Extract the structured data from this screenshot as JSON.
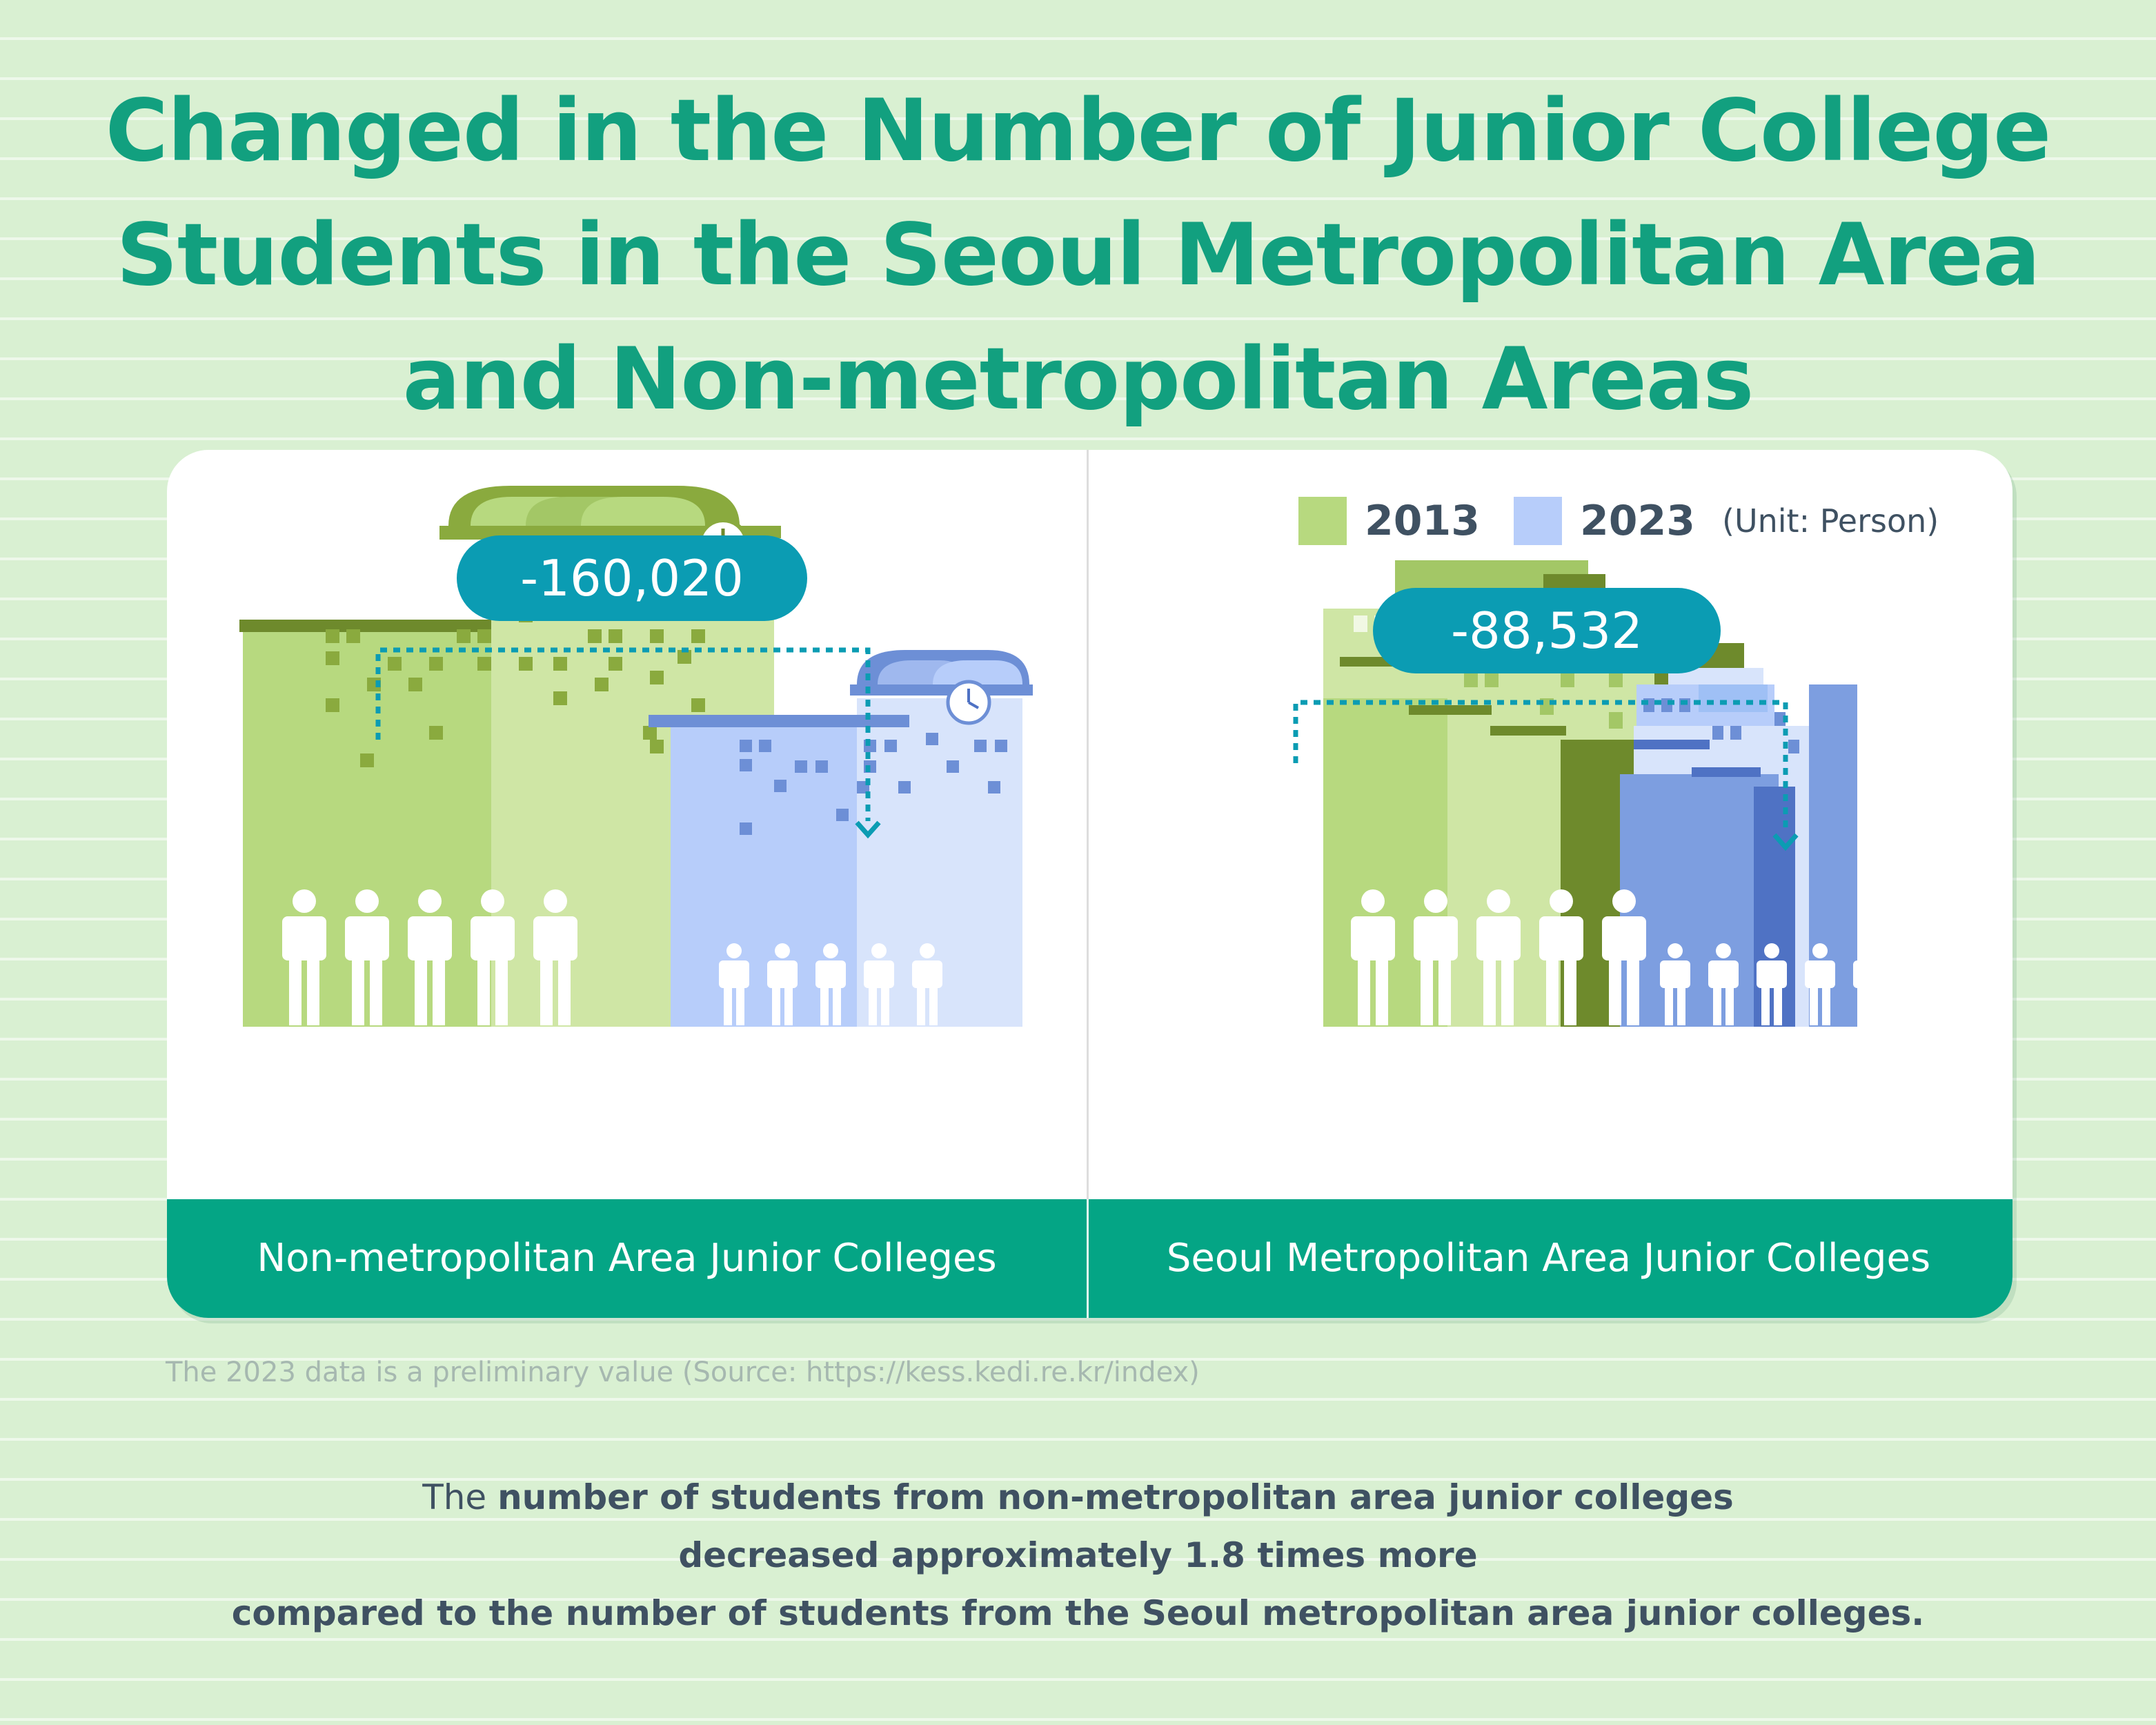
{
  "title": {
    "line1": "Changed in the Number of Junior College",
    "line2": "Students in the Seoul Metropolitan Area",
    "line3": "and Non-metropolitan Areas"
  },
  "legend": {
    "items": [
      {
        "label": "2013",
        "color": "#b7d97f"
      },
      {
        "label": "2023",
        "color": "#b7cdfa"
      }
    ],
    "unit": "(Unit: Person)"
  },
  "panels": [
    {
      "label": "Non-metropolitan Area Junior Colleges",
      "change": "-160,020",
      "color_2013": "#b7d97f",
      "color_2023": "#b7cdfa"
    },
    {
      "label": "Seoul Metropolitan Area Junior Colleges",
      "change": "-88,532",
      "color_2013": "#b7d97f",
      "color_2023": "#7d9ee0"
    }
  ],
  "source": "The 2023 data is a preliminary value (Source: https://kess.kedi.re.kr/index)",
  "conclusion": {
    "lead": "The ",
    "bold1": "number of students from non-metropolitan area junior colleges",
    "bold2": "decreased approximately 1.8 times more",
    "bold3": "compared to the number of students from the Seoul metropolitan area junior colleges."
  },
  "colors": {
    "background": "#d9f0d2",
    "title": "#12a07f",
    "footer": "#04a585",
    "pill": "#0b9cb3",
    "text": "#3f5162"
  }
}
